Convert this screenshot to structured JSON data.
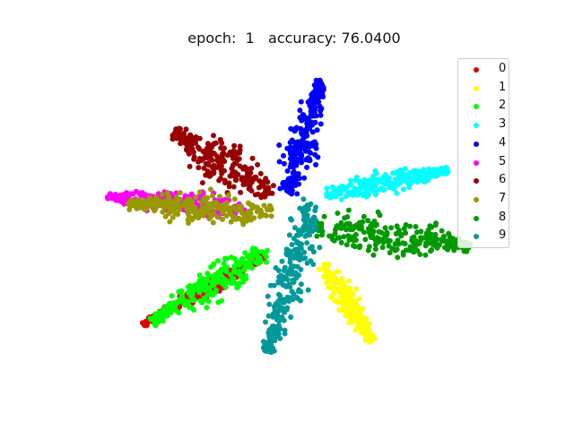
{
  "chart_data": {
    "type": "scatter",
    "title": "epoch:  1   accuracy: 76.0400",
    "xlabel": "",
    "ylabel": "",
    "axes_visible": false,
    "grid": false,
    "legend_position": "top-right",
    "xlim": [
      -10,
      10
    ],
    "ylim": [
      -7,
      7
    ],
    "series": [
      {
        "name": "0",
        "color": "#e00000",
        "start": [
          -1.3,
          -1.6
        ],
        "end": [
          -6.8,
          -4.5
        ],
        "width": 0.35
      },
      {
        "name": "1",
        "color": "#ffff00",
        "start": [
          1.3,
          -2.0
        ],
        "end": [
          3.5,
          -5.2
        ],
        "width": 0.55
      },
      {
        "name": "2",
        "color": "#00ff00",
        "start": [
          -1.2,
          -1.3
        ],
        "end": [
          -6.4,
          -4.4
        ],
        "width": 0.75
      },
      {
        "name": "3",
        "color": "#00ffff",
        "start": [
          1.4,
          1.0
        ],
        "end": [
          6.9,
          2.0
        ],
        "width": 0.55
      },
      {
        "name": "4",
        "color": "#0000ff",
        "start": [
          -0.3,
          1.0
        ],
        "end": [
          1.2,
          5.8
        ],
        "width": 0.75
      },
      {
        "name": "5",
        "color": "#ff00ff",
        "start": [
          -2.0,
          0.3
        ],
        "end": [
          -8.4,
          0.9
        ],
        "width": 0.55
      },
      {
        "name": "6",
        "color": "#990000",
        "start": [
          -1.0,
          1.0
        ],
        "end": [
          -5.4,
          3.6
        ],
        "width": 1.0
      },
      {
        "name": "7",
        "color": "#999900",
        "start": [
          -1.0,
          0.2
        ],
        "end": [
          -7.5,
          0.6
        ],
        "width": 0.7
      },
      {
        "name": "8",
        "color": "#009900",
        "start": [
          0.5,
          -0.3
        ],
        "end": [
          8.0,
          -1.2
        ],
        "width": 0.95
      },
      {
        "name": "9",
        "color": "#009999",
        "start": [
          0.8,
          0.7
        ],
        "end": [
          -1.2,
          -5.7
        ],
        "width": 0.9
      }
    ]
  }
}
